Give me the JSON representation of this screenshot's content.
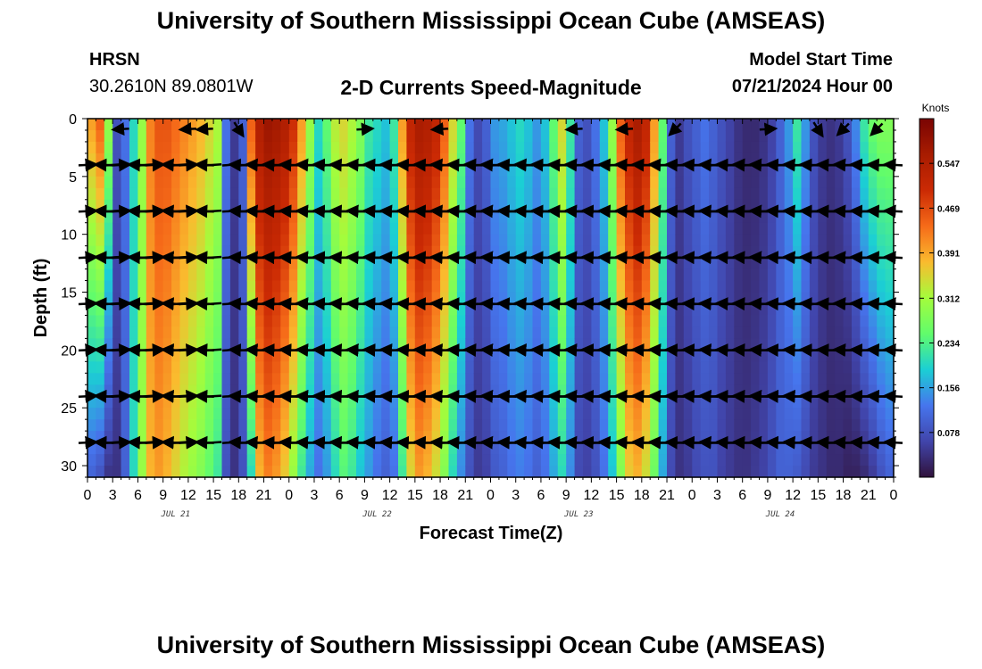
{
  "page": {
    "title": "University of Southern Mississippi Ocean Cube (AMSEAS)",
    "footer_title": "University of Southern Mississippi Ocean Cube (AMSEAS)",
    "station": {
      "name": "HRSN",
      "coords": "30.2610N  89.0801W"
    },
    "subtitle": "2-D Currents Speed-Magnitude",
    "model_start": {
      "label": "Model Start Time",
      "value": "07/21/2024 Hour 00"
    }
  },
  "chart_data": {
    "type": "heatmap",
    "title": "2-D Currents Speed-Magnitude",
    "xlabel": "Forecast Time(Z)",
    "ylabel": "Depth (ft)",
    "x_range_hours": [
      0,
      96
    ],
    "y_range_ft": [
      0,
      31
    ],
    "x_tick_labels": [
      "0",
      "3",
      "6",
      "9",
      "12",
      "15",
      "18",
      "21",
      "0",
      "3",
      "6",
      "9",
      "12",
      "15",
      "18",
      "21",
      "0",
      "3",
      "6",
      "9",
      "12",
      "15",
      "18",
      "21",
      "0",
      "3",
      "6",
      "9",
      "12",
      "15",
      "18",
      "21",
      "0"
    ],
    "y_ticks": [
      0,
      5,
      10,
      15,
      20,
      25,
      30
    ],
    "date_labels": [
      {
        "label": "JUL 21",
        "hour": 10.5
      },
      {
        "label": "JUL 22",
        "hour": 34.5
      },
      {
        "label": "JUL 23",
        "hour": 58.5
      },
      {
        "label": "JUL 24",
        "hour": 82.5
      }
    ],
    "colorbar": {
      "unit": "Knots",
      "ticks": [
        0.078,
        0.156,
        0.234,
        0.312,
        0.391,
        0.469,
        0.547
      ],
      "range": [
        0,
        0.625
      ]
    },
    "speed_surface_knots": {
      "hours": [
        0,
        1,
        2,
        3,
        4,
        5,
        6,
        7,
        8,
        9,
        10,
        11,
        12,
        13,
        14,
        15,
        16,
        17,
        18,
        19,
        20,
        21,
        22,
        23,
        24,
        25,
        26,
        27,
        28,
        29,
        30,
        31,
        32,
        33,
        34,
        35,
        36,
        37,
        38,
        39,
        40,
        41,
        42,
        43,
        44,
        45,
        46,
        47,
        48,
        49,
        50,
        51,
        52,
        53,
        54,
        55,
        56,
        57,
        58,
        59,
        60,
        61,
        62,
        63,
        64,
        65,
        66,
        67,
        68,
        69,
        70,
        71,
        72,
        73,
        74,
        75,
        76,
        77,
        78,
        79,
        80,
        81,
        82,
        83,
        84,
        85,
        86,
        87,
        88,
        89,
        90,
        91,
        92,
        93,
        94,
        95,
        96
      ],
      "surface": [
        0.4,
        0.45,
        0.3,
        0.08,
        0.12,
        0.2,
        0.3,
        0.42,
        0.46,
        0.46,
        0.44,
        0.42,
        0.4,
        0.38,
        0.35,
        0.32,
        0.12,
        0.05,
        0.1,
        0.45,
        0.55,
        0.58,
        0.57,
        0.55,
        0.5,
        0.4,
        0.3,
        0.2,
        0.25,
        0.33,
        0.35,
        0.32,
        0.28,
        0.22,
        0.2,
        0.18,
        0.22,
        0.4,
        0.52,
        0.56,
        0.55,
        0.52,
        0.45,
        0.35,
        0.25,
        0.12,
        0.07,
        0.1,
        0.15,
        0.16,
        0.18,
        0.2,
        0.18,
        0.15,
        0.18,
        0.25,
        0.35,
        0.22,
        0.1,
        0.08,
        0.12,
        0.18,
        0.3,
        0.45,
        0.52,
        0.56,
        0.52,
        0.4,
        0.25,
        0.1,
        0.05,
        0.08,
        0.1,
        0.12,
        0.1,
        0.08,
        0.06,
        0.04,
        0.03,
        0.03,
        0.04,
        0.06,
        0.1,
        0.15,
        0.22,
        0.15,
        0.08,
        0.05,
        0.04,
        0.05,
        0.08,
        0.14,
        0.22,
        0.26,
        0.28,
        0.28,
        0.3
      ],
      "bottom": [
        0.1,
        0.08,
        0.04,
        0.04,
        0.1,
        0.2,
        0.3,
        0.38,
        0.4,
        0.38,
        0.35,
        0.32,
        0.3,
        0.28,
        0.25,
        0.22,
        0.08,
        0.04,
        0.08,
        0.2,
        0.38,
        0.42,
        0.4,
        0.36,
        0.3,
        0.22,
        0.16,
        0.12,
        0.15,
        0.2,
        0.24,
        0.22,
        0.18,
        0.15,
        0.12,
        0.1,
        0.12,
        0.22,
        0.35,
        0.4,
        0.38,
        0.34,
        0.28,
        0.2,
        0.14,
        0.08,
        0.05,
        0.06,
        0.09,
        0.1,
        0.12,
        0.13,
        0.12,
        0.1,
        0.12,
        0.16,
        0.2,
        0.14,
        0.07,
        0.06,
        0.08,
        0.12,
        0.18,
        0.28,
        0.36,
        0.38,
        0.34,
        0.26,
        0.16,
        0.07,
        0.04,
        0.05,
        0.07,
        0.08,
        0.08,
        0.06,
        0.05,
        0.04,
        0.04,
        0.05,
        0.06,
        0.08,
        0.1,
        0.1,
        0.09,
        0.07,
        0.05,
        0.04,
        0.03,
        0.03,
        0.02,
        0.02,
        0.03,
        0.05,
        0.08,
        0.1,
        0.12
      ]
    },
    "vectors": {
      "depths_ft": [
        4,
        8,
        12,
        16,
        20,
        24,
        28
      ],
      "hours": [
        0,
        1,
        2,
        3,
        4,
        5,
        6,
        7,
        8,
        9,
        10,
        11,
        12,
        13,
        14,
        15,
        17,
        18,
        19,
        20,
        21,
        22,
        23,
        24,
        25,
        26,
        27,
        28,
        29,
        30,
        31,
        32,
        33,
        34,
        35,
        36,
        37,
        38,
        39,
        40,
        41,
        42,
        43,
        44,
        45,
        46,
        47,
        48,
        49,
        50,
        51,
        52,
        53,
        54,
        55,
        56,
        57,
        58,
        59,
        60,
        61,
        62,
        63,
        64,
        65,
        66,
        67,
        68,
        69,
        70,
        71,
        72,
        73,
        74,
        75,
        76,
        77,
        78,
        79,
        80,
        81,
        82,
        83,
        84,
        85,
        86,
        87,
        88,
        89,
        90,
        91,
        92,
        93,
        94,
        95,
        96
      ],
      "surface_arrows": [
        {
          "hour": 4,
          "dir": "left"
        },
        {
          "hour": 12,
          "dir": "left"
        },
        {
          "hour": 14,
          "dir": "left"
        },
        {
          "hour": 18,
          "dir": "down-right"
        },
        {
          "hour": 33,
          "dir": "right"
        },
        {
          "hour": 42,
          "dir": "left"
        },
        {
          "hour": 58,
          "dir": "left"
        },
        {
          "hour": 64,
          "dir": "left"
        },
        {
          "hour": 70,
          "dir": "down-left"
        },
        {
          "hour": 81,
          "dir": "right"
        },
        {
          "hour": 87,
          "dir": "down-right"
        },
        {
          "hour": 90,
          "dir": "down-left"
        },
        {
          "hour": 94,
          "dir": "down-left"
        }
      ]
    }
  }
}
